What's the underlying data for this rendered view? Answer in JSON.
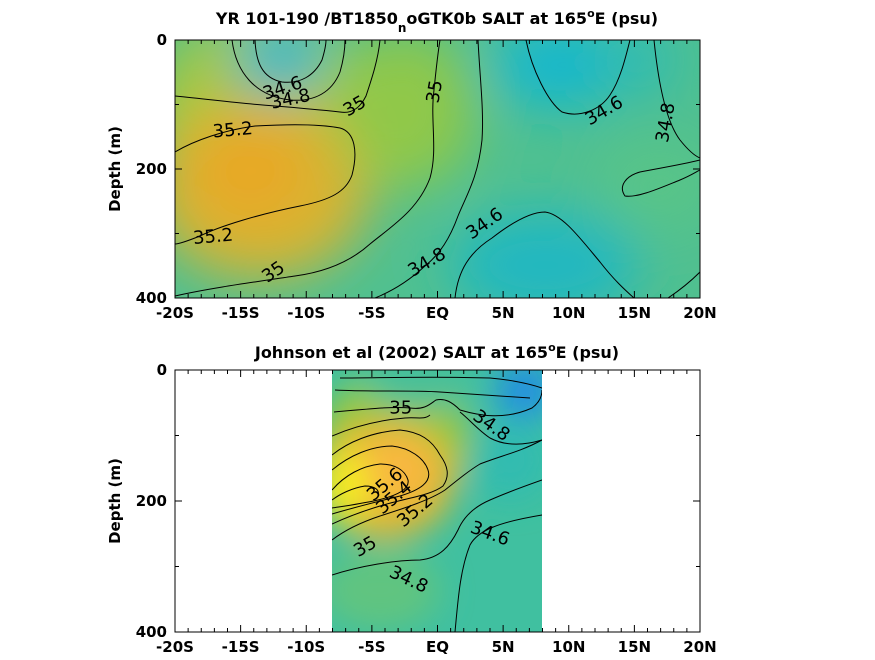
{
  "chart_data": [
    {
      "type": "contour",
      "title": {
        "main": "YR 101-190 /BT1850",
        "sub": "n",
        "mid": "oGTK0b SALT at 165",
        "sup": "o",
        "end": "E (psu)"
      },
      "ylabel": "Depth (m)",
      "xlim": [
        -20,
        20
      ],
      "ylim": [
        0,
        400
      ],
      "y_reversed": true,
      "x_tick_values": [
        -20,
        -15,
        -10,
        -5,
        0,
        5,
        10,
        15,
        20
      ],
      "x_tick_labels": [
        "-20S",
        "-15S",
        "-10S",
        "-5S",
        "EQ",
        "5N",
        "10N",
        "15N",
        "20N"
      ],
      "y_tick_values": [
        0,
        200,
        400
      ],
      "y_tick_labels": [
        "0",
        "200",
        "400"
      ],
      "data_extent_x": [
        -20,
        20
      ],
      "grid": false,
      "colors": {
        "low": "#19b8c8",
        "mid": "#8cc850",
        "high": "#e8b030"
      },
      "salinity_field_psu": [
        {
          "lat": -15,
          "depth": 200,
          "salt": 35.3
        },
        {
          "lat": -12,
          "depth": 30,
          "salt": 34.5
        },
        {
          "lat": 9,
          "depth": 30,
          "salt": 34.5
        },
        {
          "lat": 7,
          "depth": 320,
          "salt": 34.6
        },
        {
          "lat": 0,
          "depth": 80,
          "salt": 35.0
        },
        {
          "lat": 18,
          "depth": 210,
          "salt": 34.9
        }
      ],
      "contour_labels": [
        {
          "text": "34.6",
          "x": -11.8,
          "y": 75,
          "angle": -18
        },
        {
          "text": "34.8",
          "x": -11.2,
          "y": 92,
          "angle": -12
        },
        {
          "text": "35",
          "x": -6.3,
          "y": 103,
          "angle": -30
        },
        {
          "text": "35",
          "x": -0.2,
          "y": 80,
          "angle": -80
        },
        {
          "text": "35.2",
          "x": -15.6,
          "y": 140,
          "angle": -5
        },
        {
          "text": "35.2",
          "x": -17.1,
          "y": 305,
          "angle": -5
        },
        {
          "text": "35",
          "x": -12.5,
          "y": 360,
          "angle": -35
        },
        {
          "text": "34.8",
          "x": -0.8,
          "y": 345,
          "angle": -30
        },
        {
          "text": "34.6",
          "x": 3.6,
          "y": 285,
          "angle": -35
        },
        {
          "text": "34.6",
          "x": 12.7,
          "y": 110,
          "angle": -30
        },
        {
          "text": "34.8",
          "x": 17.4,
          "y": 128,
          "angle": -80
        }
      ]
    },
    {
      "type": "contour",
      "title": {
        "main": "Johnson et al (2002) SALT at 165",
        "sup": "o",
        "end": "E (psu)"
      },
      "ylabel": "Depth (m)",
      "xlim": [
        -20,
        20
      ],
      "ylim": [
        0,
        400
      ],
      "y_reversed": true,
      "x_tick_values": [
        -20,
        -15,
        -10,
        -5,
        0,
        5,
        10,
        15,
        20
      ],
      "x_tick_labels": [
        "-20S",
        "-15S",
        "-10S",
        "-5S",
        "EQ",
        "5N",
        "10N",
        "15N",
        "20N"
      ],
      "y_tick_values": [
        0,
        200,
        400
      ],
      "y_tick_labels": [
        "0",
        "200",
        "400"
      ],
      "data_extent_x": [
        -8,
        8
      ],
      "grid": false,
      "colors": {
        "low": "#2090e0",
        "mid": "#30c0a8",
        "high": "#f8f020"
      },
      "salinity_field_psu": [
        {
          "lat": -7.5,
          "depth": 180,
          "salt": 35.7
        },
        {
          "lat": -3,
          "depth": 150,
          "salt": 35.5
        },
        {
          "lat": 7.5,
          "depth": 20,
          "salt": 34.2
        },
        {
          "lat": -2,
          "depth": 10,
          "salt": 34.6
        },
        {
          "lat": 5,
          "depth": 300,
          "salt": 34.6
        },
        {
          "lat": -4,
          "depth": 380,
          "salt": 34.8
        }
      ],
      "contour_labels": [
        {
          "text": "35",
          "x": -2.8,
          "y": 58,
          "angle": 0
        },
        {
          "text": "34.8",
          "x": 4.1,
          "y": 85,
          "angle": 35
        },
        {
          "text": "35.6",
          "x": -4,
          "y": 175,
          "angle": -40
        },
        {
          "text": "35.4",
          "x": -3.3,
          "y": 195,
          "angle": -40
        },
        {
          "text": "35.2",
          "x": -1.7,
          "y": 215,
          "angle": -40
        },
        {
          "text": "34.6",
          "x": 4,
          "y": 250,
          "angle": 20
        },
        {
          "text": "35",
          "x": -5.5,
          "y": 270,
          "angle": -30
        },
        {
          "text": "34.8",
          "x": -2.2,
          "y": 320,
          "angle": 25
        }
      ]
    }
  ]
}
